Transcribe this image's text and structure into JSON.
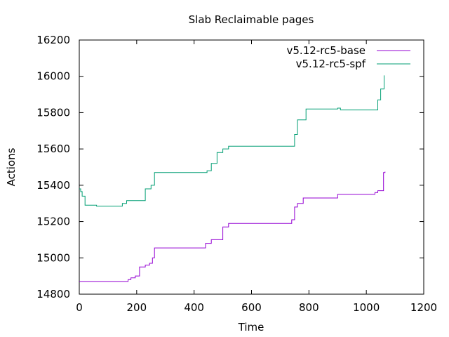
{
  "chart_data": {
    "type": "line",
    "title": "Slab Reclaimable pages",
    "xlabel": "Time",
    "ylabel": "Actions",
    "xlim": [
      0,
      1200
    ],
    "ylim": [
      14800,
      16200
    ],
    "xticks": [
      "0",
      "200",
      "400",
      "600",
      "800",
      "1000",
      "1200"
    ],
    "yticks": [
      "14800",
      "15000",
      "15200",
      "15400",
      "15600",
      "15800",
      "16000",
      "16200"
    ],
    "grid": false,
    "legend_position": "top-right",
    "series": [
      {
        "name": "v5.12-rc5-base",
        "color": "#9400d3",
        "x": [
          0,
          160,
          170,
          180,
          195,
          210,
          230,
          245,
          255,
          262,
          430,
          440,
          460,
          490,
          500,
          520,
          730,
          740,
          750,
          760,
          780,
          900,
          1030,
          1040,
          1060,
          1065
        ],
        "y": [
          14870,
          14870,
          14880,
          14890,
          14900,
          14950,
          14960,
          14970,
          15000,
          15055,
          15055,
          15080,
          15100,
          15100,
          15170,
          15190,
          15190,
          15210,
          15280,
          15300,
          15330,
          15350,
          15360,
          15370,
          15470,
          15475
        ]
      },
      {
        "name": "v5.12-rc5-spf",
        "color": "#009e73",
        "x": [
          0,
          5,
          10,
          20,
          60,
          120,
          150,
          165,
          210,
          230,
          250,
          262,
          420,
          430,
          445,
          460,
          480,
          500,
          520,
          740,
          750,
          760,
          775,
          790,
          900,
          910,
          1030,
          1040,
          1050,
          1062
        ],
        "y": [
          15380,
          15365,
          15340,
          15290,
          15285,
          15285,
          15300,
          15315,
          15315,
          15380,
          15400,
          15470,
          15470,
          15470,
          15480,
          15520,
          15580,
          15600,
          15615,
          15615,
          15680,
          15760,
          15760,
          15820,
          15825,
          15815,
          15815,
          15870,
          15930,
          16005
        ]
      }
    ]
  }
}
